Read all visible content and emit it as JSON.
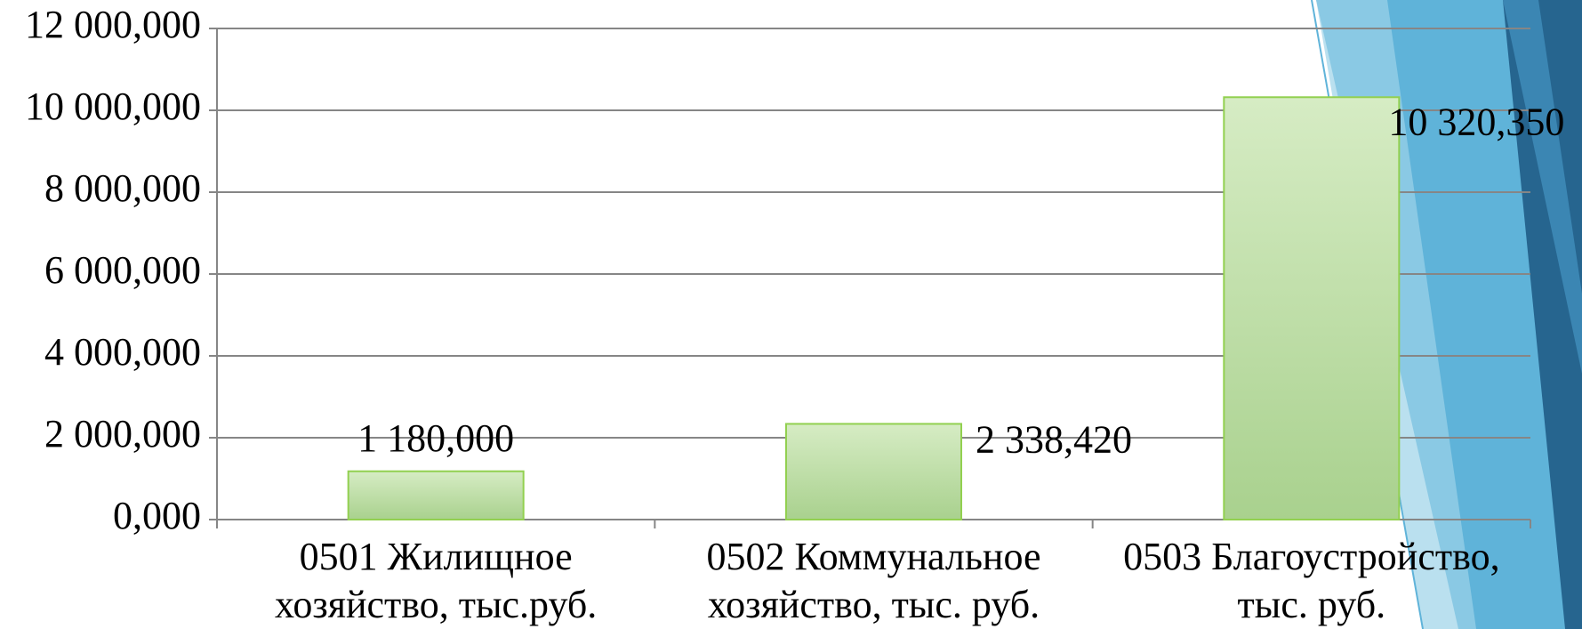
{
  "chart_data": {
    "type": "bar",
    "categories": [
      [
        "0501 Жилищное",
        "хозяйство, тыс.руб."
      ],
      [
        "0502 Коммунальное",
        "хозяйство, тыс. руб."
      ],
      [
        "0503 Благоустройство,",
        "тыс. руб."
      ]
    ],
    "values": [
      1180,
      2338.42,
      10320.35
    ],
    "value_labels": [
      "1 180,000",
      "2 338,420",
      "10 320,350"
    ],
    "color": "#a9d18e",
    "ylim": [
      0,
      12000
    ],
    "yticks": [
      {
        "value": 0,
        "label": "0,000"
      },
      {
        "value": 2000,
        "label": "2 000,000"
      },
      {
        "value": 4000,
        "label": "4 000,000"
      },
      {
        "value": 6000,
        "label": "6 000,000"
      },
      {
        "value": 8000,
        "label": "8 000,000"
      },
      {
        "value": 10000,
        "label": "10 000,000"
      },
      {
        "value": 12000,
        "label": "12 000,000"
      }
    ],
    "grid": true
  }
}
